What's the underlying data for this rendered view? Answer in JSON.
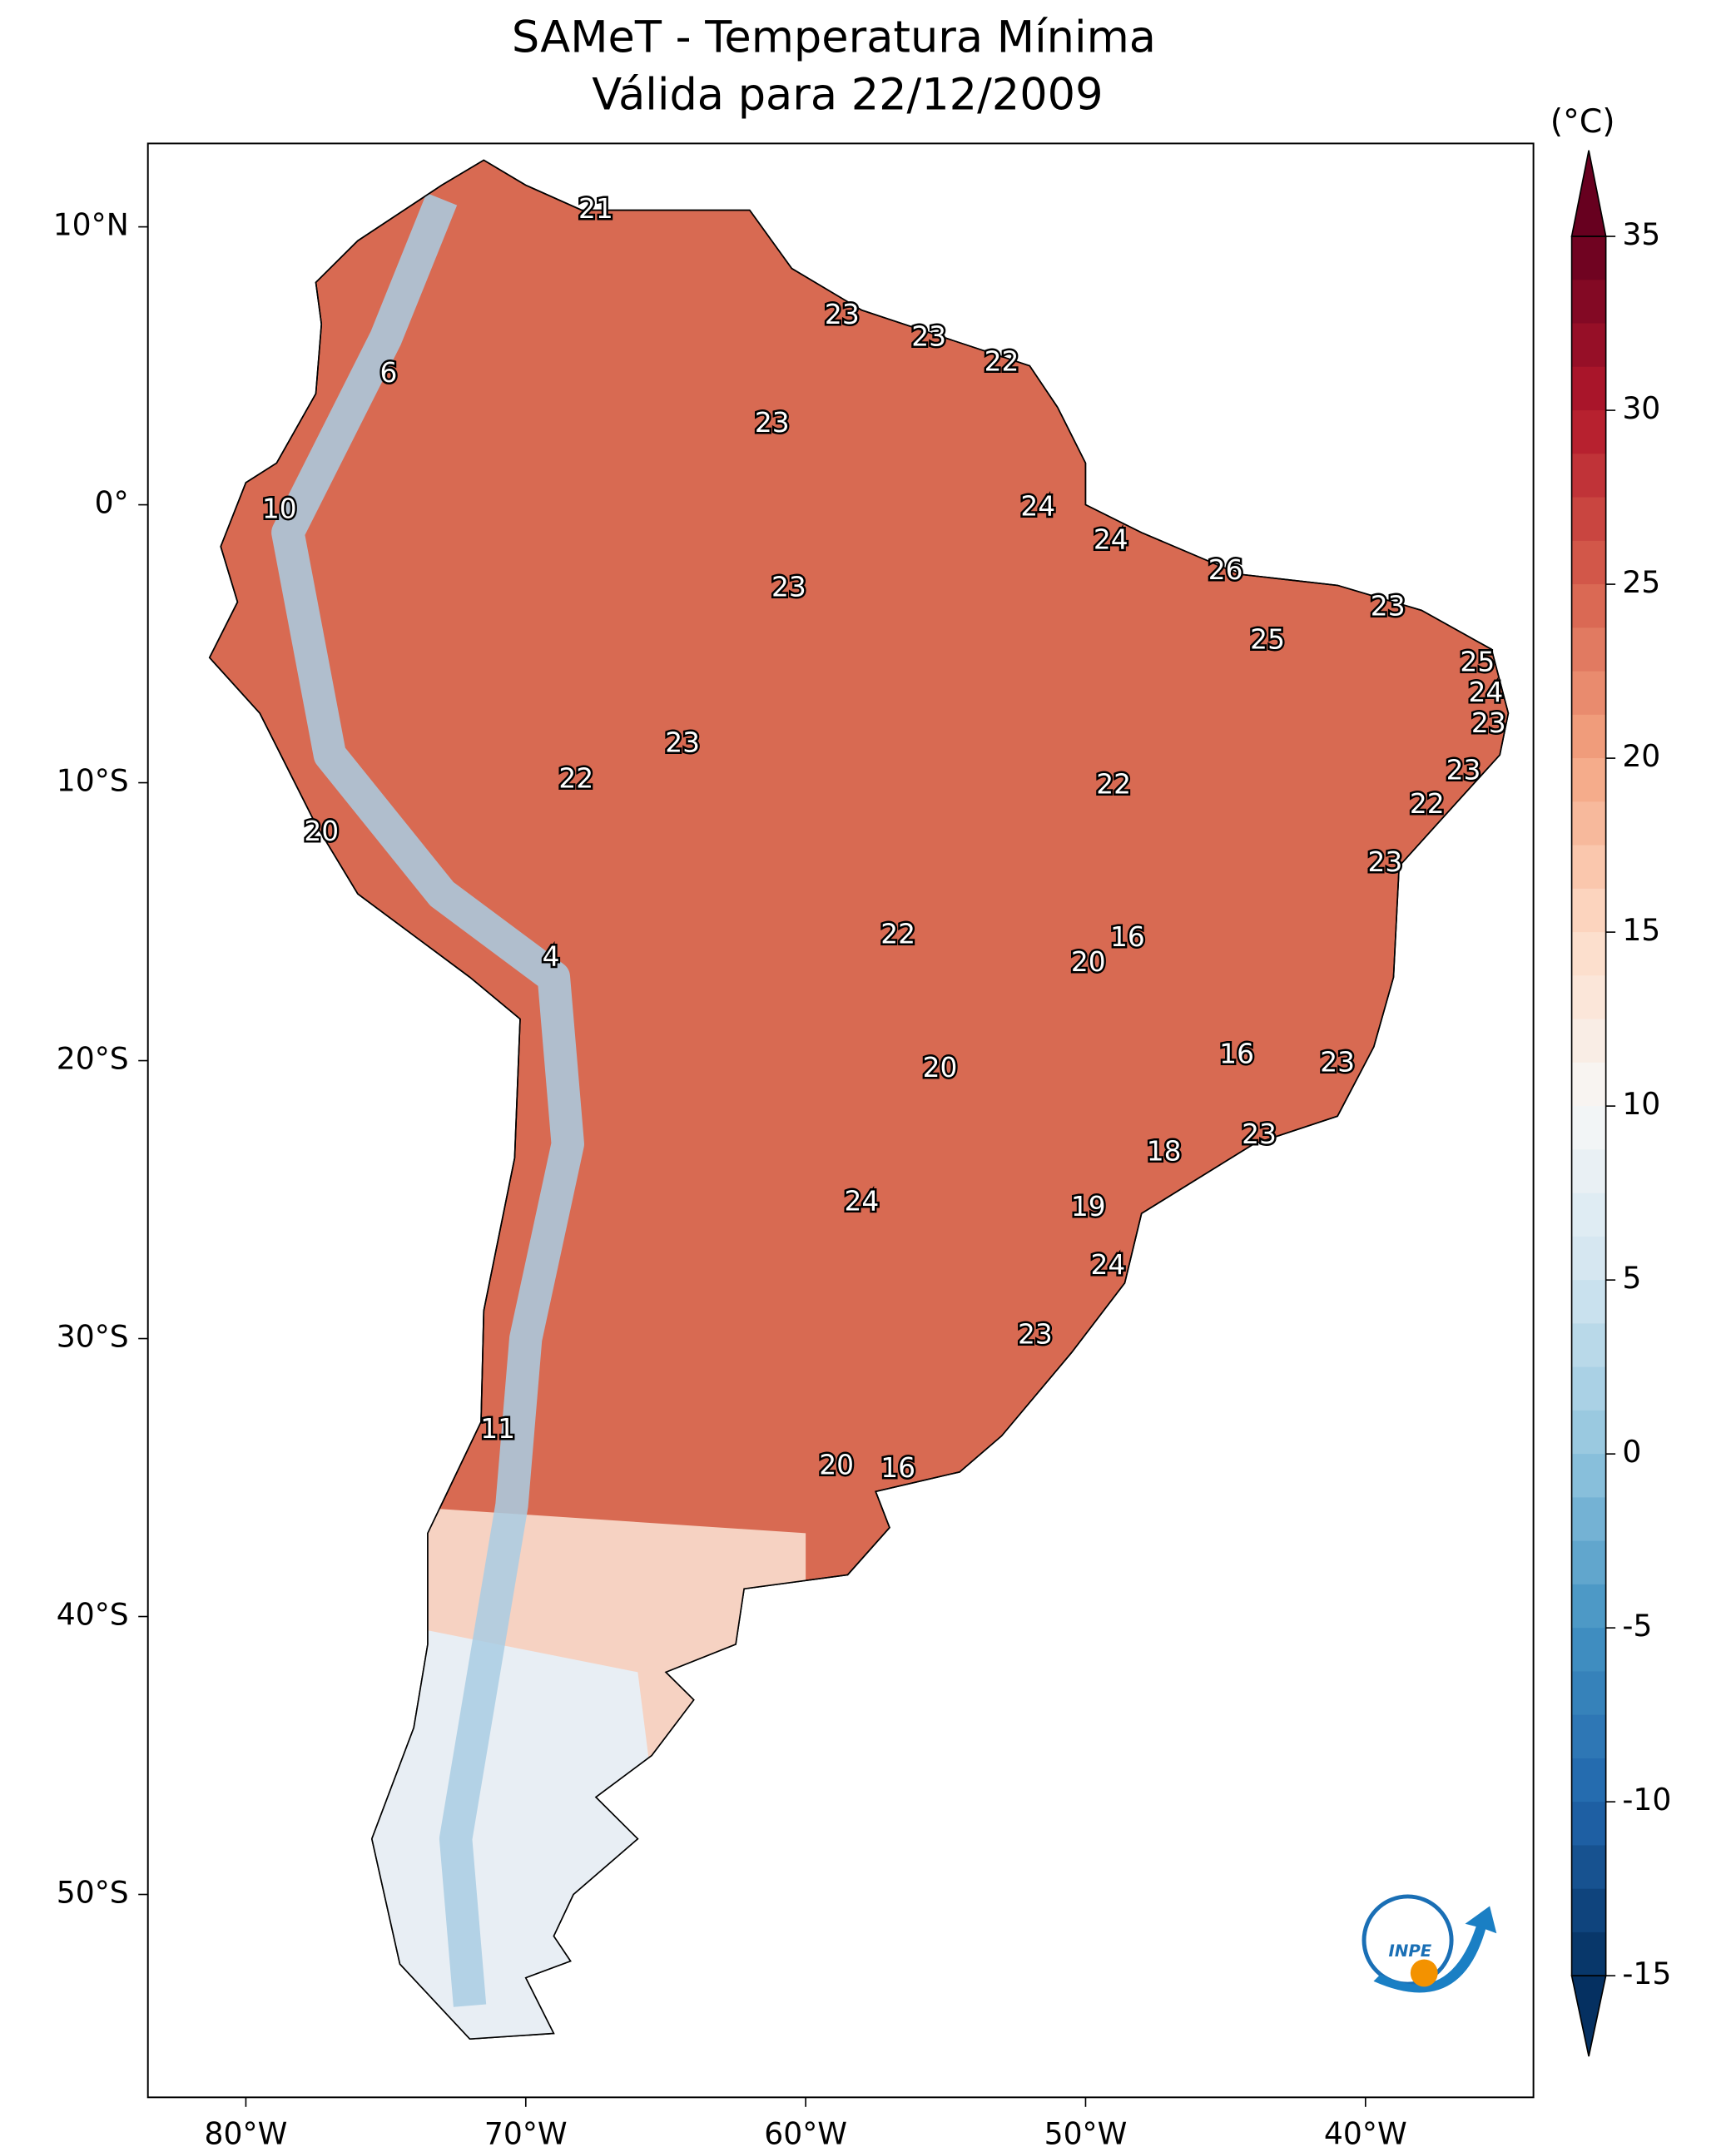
{
  "chart_data": {
    "type": "map",
    "title": "SAMeT - Temperatura Mínima",
    "subtitle": "Válida para 22/12/2009",
    "xlim": [
      -83.5,
      -34
    ],
    "ylim": [
      -57.3,
      13
    ],
    "xticks": [
      {
        "value": -80,
        "label": "80°W"
      },
      {
        "value": -70,
        "label": "70°W"
      },
      {
        "value": -60,
        "label": "60°W"
      },
      {
        "value": -50,
        "label": "50°W"
      },
      {
        "value": -40,
        "label": "40°W"
      }
    ],
    "yticks": [
      {
        "value": 10,
        "label": "10°N"
      },
      {
        "value": 0,
        "label": "0°"
      },
      {
        "value": -10,
        "label": "10°S"
      },
      {
        "value": -20,
        "label": "20°S"
      },
      {
        "value": -30,
        "label": "30°S"
      },
      {
        "value": -40,
        "label": "40°S"
      },
      {
        "value": -50,
        "label": "50°S"
      }
    ],
    "colorbar": {
      "label": "(°C)",
      "lim": [
        -15,
        35
      ],
      "ticks": [
        -15,
        -10,
        -5,
        0,
        5,
        10,
        15,
        20,
        25,
        30,
        35
      ],
      "colors": [
        "#053061",
        "#2166ac",
        "#4393c3",
        "#92c5de",
        "#d1e5f0",
        "#f7f7f7",
        "#fddbc7",
        "#f4a582",
        "#d6604d",
        "#b2182b",
        "#67001f"
      ]
    },
    "stations": [
      {
        "value": 21,
        "lon": -67.5,
        "lat": 10.6
      },
      {
        "value": 23,
        "lon": -58.7,
        "lat": 6.8
      },
      {
        "value": 23,
        "lon": -55.6,
        "lat": 6.0
      },
      {
        "value": 22,
        "lon": -53.0,
        "lat": 5.1
      },
      {
        "value": 6,
        "lon": -74.9,
        "lat": 4.7
      },
      {
        "value": 23,
        "lon": -61.2,
        "lat": 2.9
      },
      {
        "value": 10,
        "lon": -78.8,
        "lat": -0.2
      },
      {
        "value": 24,
        "lon": -51.7,
        "lat": -0.1
      },
      {
        "value": 24,
        "lon": -49.1,
        "lat": -1.3
      },
      {
        "value": 26,
        "lon": -45.0,
        "lat": -2.4
      },
      {
        "value": 23,
        "lon": -60.6,
        "lat": -3.0
      },
      {
        "value": 23,
        "lon": -39.2,
        "lat": -3.7
      },
      {
        "value": 25,
        "lon": -43.5,
        "lat": -4.9
      },
      {
        "value": 25,
        "lon": -36.0,
        "lat": -5.7
      },
      {
        "value": 24,
        "lon": -35.7,
        "lat": -6.8
      },
      {
        "value": 23,
        "lon": -35.6,
        "lat": -7.9
      },
      {
        "value": 23,
        "lon": -64.4,
        "lat": -8.6
      },
      {
        "value": 23,
        "lon": -36.5,
        "lat": -9.6
      },
      {
        "value": 22,
        "lon": -68.2,
        "lat": -9.9
      },
      {
        "value": 22,
        "lon": -49.0,
        "lat": -10.1
      },
      {
        "value": 22,
        "lon": -37.8,
        "lat": -10.8
      },
      {
        "value": 20,
        "lon": -77.3,
        "lat": -11.8
      },
      {
        "value": 23,
        "lon": -39.3,
        "lat": -12.9
      },
      {
        "value": 22,
        "lon": -56.7,
        "lat": -15.5
      },
      {
        "value": 16,
        "lon": -48.5,
        "lat": -15.6
      },
      {
        "value": 4,
        "lon": -69.1,
        "lat": -16.3
      },
      {
        "value": 20,
        "lon": -49.9,
        "lat": -16.5
      },
      {
        "value": 16,
        "lon": -44.6,
        "lat": -19.8
      },
      {
        "value": 20,
        "lon": -55.2,
        "lat": -20.3
      },
      {
        "value": 23,
        "lon": -41.0,
        "lat": -20.1
      },
      {
        "value": 23,
        "lon": -43.8,
        "lat": -22.7
      },
      {
        "value": 18,
        "lon": -47.2,
        "lat": -23.3
      },
      {
        "value": 24,
        "lon": -58.0,
        "lat": -25.1
      },
      {
        "value": 19,
        "lon": -49.9,
        "lat": -25.3
      },
      {
        "value": 24,
        "lon": -49.2,
        "lat": -27.4
      },
      {
        "value": 23,
        "lon": -51.8,
        "lat": -29.9
      },
      {
        "value": 11,
        "lon": -71.0,
        "lat": -33.3
      },
      {
        "value": 20,
        "lon": -58.9,
        "lat": -34.6
      },
      {
        "value": 16,
        "lon": -56.7,
        "lat": -34.7
      }
    ]
  }
}
